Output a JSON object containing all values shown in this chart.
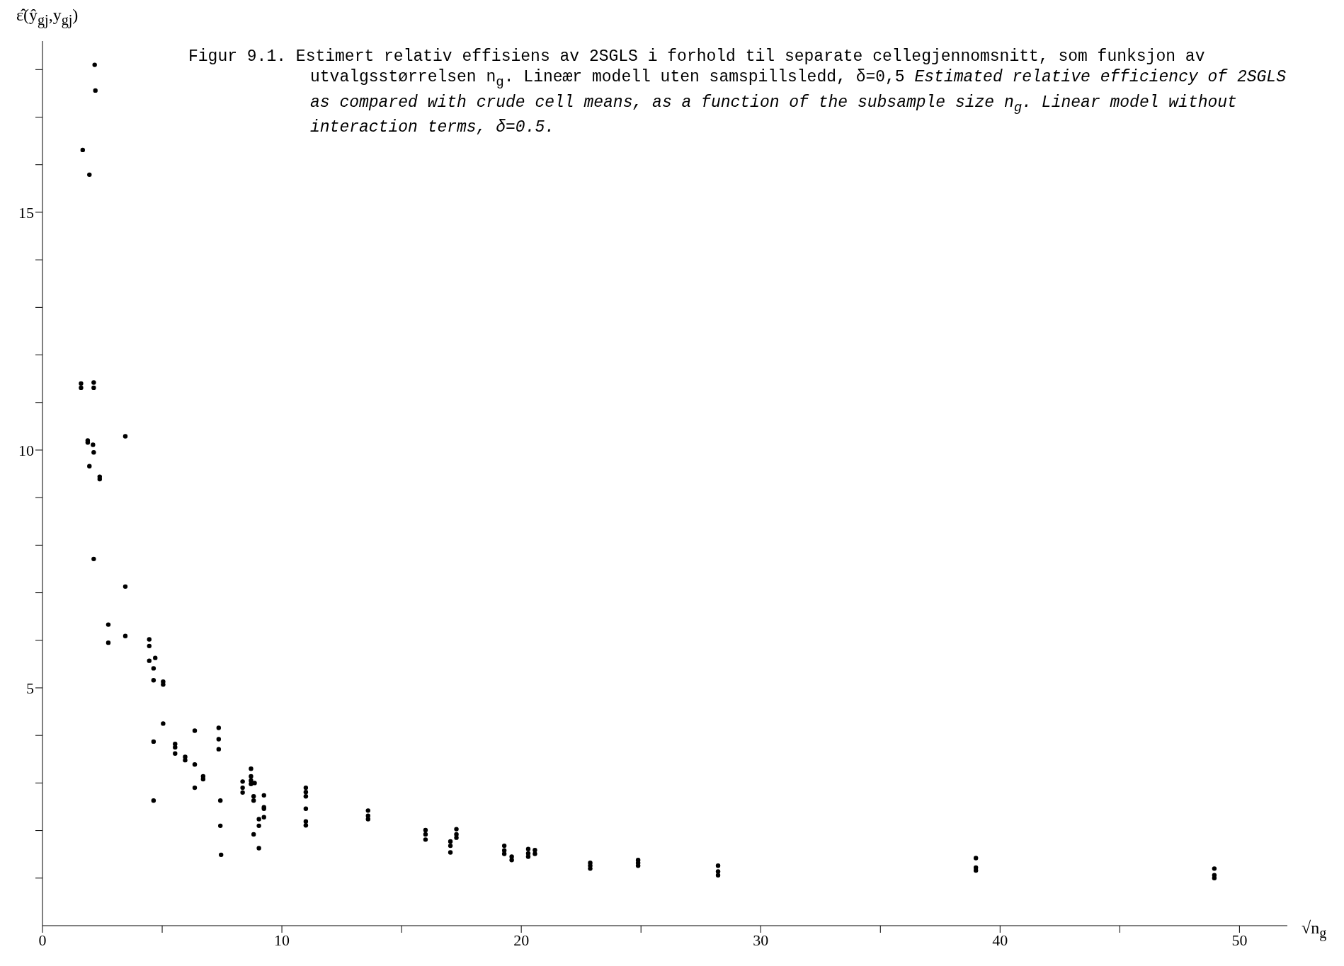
{
  "chart_data": {
    "type": "scatter",
    "title": "Figur 9.1.  Estimert relativ effisiens av 2SGLS i forhold til separate cellegjennomsnitt, som funksjon av utvalgsstørrelsen n$_{g}$.  Lineær modell uten samspillsledd, δ=0,5",
    "subtitle": "Estimated relative efficiency of 2SGLS as compared with crude cell means, as a function of the subsample size n$_{g}$.  Linear model  without interaction terms, δ=0.5.",
    "xlabel": "√n$_{g}$",
    "ylabel": "ε̂(ŷ$_{gj}$,y$_{gj}$)",
    "x": [
      2.18,
      2.21,
      1.68,
      1.96,
      1.61,
      1.61,
      2.14,
      2.14,
      1.89,
      1.89,
      2.11,
      2.14,
      1.96,
      2.39,
      2.39,
      3.46,
      2.14,
      3.46,
      2.75,
      2.75,
      3.46,
      4.46,
      4.46,
      4.71,
      4.46,
      4.64,
      4.64,
      5.04,
      5.04,
      5.04,
      4.64,
      5.54,
      5.54,
      5.54,
      5.96,
      5.96,
      6.36,
      6.36,
      6.36,
      6.71,
      6.71,
      7.36,
      7.36,
      7.36,
      4.64,
      7.43,
      7.43,
      7.46,
      8.36,
      8.36,
      8.36,
      8.71,
      8.71,
      8.71,
      8.71,
      8.86,
      8.82,
      8.82,
      8.82,
      9.04,
      9.04,
      9.04,
      9.25,
      9.25,
      9.25,
      9.25,
      11.0,
      11.0,
      11.0,
      11.0,
      11.0,
      11.0,
      13.6,
      13.6,
      13.6,
      16.0,
      16.0,
      16.0,
      17.04,
      17.04,
      17.04,
      17.29,
      17.29,
      17.29,
      19.29,
      19.29,
      19.29,
      19.6,
      19.6,
      20.29,
      20.29,
      20.29,
      20.57,
      20.57,
      22.88,
      22.88,
      22.88,
      24.88,
      24.88,
      24.88,
      28.22,
      28.22,
      28.22,
      38.99,
      38.99,
      38.99,
      48.95,
      48.95,
      48.95
    ],
    "values": [
      18.1,
      17.56,
      16.31,
      15.79,
      11.4,
      11.31,
      11.42,
      11.31,
      10.2,
      10.16,
      10.11,
      9.95,
      9.66,
      9.44,
      9.39,
      10.29,
      7.71,
      7.13,
      6.33,
      5.95,
      6.09,
      6.02,
      5.88,
      5.63,
      5.57,
      5.41,
      5.16,
      5.13,
      5.07,
      4.25,
      3.87,
      3.82,
      3.75,
      3.62,
      3.55,
      3.48,
      4.1,
      3.39,
      2.9,
      3.14,
      3.08,
      4.16,
      3.92,
      3.71,
      2.63,
      2.63,
      2.1,
      1.49,
      3.03,
      2.9,
      2.8,
      3.3,
      3.14,
      3.05,
      2.98,
      3.0,
      2.72,
      2.63,
      1.92,
      2.24,
      2.1,
      1.63,
      2.74,
      2.49,
      2.46,
      2.28,
      2.9,
      2.81,
      2.72,
      2.46,
      2.19,
      2.11,
      2.42,
      2.31,
      2.24,
      2.01,
      1.92,
      1.81,
      1.77,
      1.68,
      1.54,
      2.03,
      1.92,
      1.85,
      1.68,
      1.58,
      1.51,
      1.45,
      1.38,
      1.61,
      1.52,
      1.45,
      1.59,
      1.51,
      1.32,
      1.26,
      1.2,
      1.38,
      1.32,
      1.26,
      1.26,
      1.14,
      1.06,
      1.42,
      1.22,
      1.16,
      1.2,
      1.06,
      1.0
    ],
    "color": "#000000",
    "marker": "circle",
    "xlim": [
      0,
      52
    ],
    "xticks": [
      0,
      {
        "value": 5,
        "label": null
      },
      10,
      {
        "value": 15,
        "label": null
      },
      20,
      {
        "value": 25,
        "label": null
      },
      30,
      {
        "value": 35,
        "label": null
      },
      40,
      {
        "value": 45,
        "label": null
      },
      50
    ],
    "ylim": [
      0,
      18.6
    ],
    "yticks": [
      {
        "value": 1,
        "label": null
      },
      {
        "value": 2,
        "label": null
      },
      {
        "value": 3,
        "label": null
      },
      {
        "value": 4,
        "label": null
      },
      5,
      {
        "value": 6,
        "label": null
      },
      {
        "value": 7,
        "label": null
      },
      {
        "value": 8,
        "label": null
      },
      {
        "value": 9,
        "label": null
      },
      10,
      {
        "value": 11,
        "label": null
      },
      {
        "value": 12,
        "label": null
      },
      {
        "value": 13,
        "label": null
      },
      {
        "value": 14,
        "label": null
      },
      15,
      {
        "value": 16,
        "label": null
      },
      {
        "value": 17,
        "label": null
      },
      {
        "value": 18,
        "label": null
      }
    ],
    "grid": false,
    "legend": false
  }
}
